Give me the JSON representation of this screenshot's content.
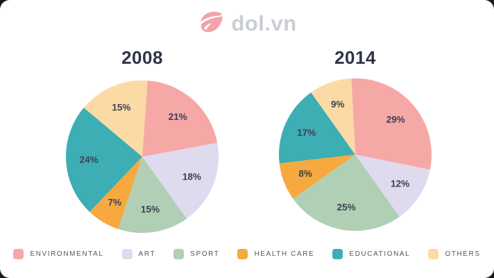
{
  "logo": {
    "text": "dol.vn"
  },
  "colors": {
    "environmental": "#F6A8A6",
    "art": "#DFDAEE",
    "sport": "#B0CFB4",
    "health_care": "#F6A93E",
    "educational": "#3CAEB4",
    "others": "#FBDAA5",
    "title_text": "#2D3448",
    "percent_label_text": "#3E4254",
    "legend_text": "#54565E",
    "logo_text": "#C9CDD6",
    "logo_icon": "#F2A4AA",
    "card_background": "#FFFFFF"
  },
  "legend": {
    "items": [
      {
        "label": "ENVIRONMENTAL",
        "color": "#F6A8A6"
      },
      {
        "label": "ART",
        "color": "#DFDAEE"
      },
      {
        "label": "SPORT",
        "color": "#B0CFB4"
      },
      {
        "label": "HEALTH CARE",
        "color": "#F6A93E"
      },
      {
        "label": "EDUCATIONAL",
        "color": "#3CAEB4"
      },
      {
        "label": "OTHERS",
        "color": "#FBDAA5"
      }
    ],
    "position": "bottom"
  },
  "chart_data": [
    {
      "type": "pie",
      "title": "2008",
      "unit": "%",
      "start_angle_deg": 4,
      "categories": [
        "Environmental",
        "Art",
        "Sport",
        "Health Care",
        "Educational",
        "Others"
      ],
      "values": [
        21,
        18,
        15,
        7,
        24,
        15
      ],
      "slice_colors": [
        "#F6A8A6",
        "#DFDAEE",
        "#B0CFB4",
        "#F6A93E",
        "#3CAEB4",
        "#FBDAA5"
      ],
      "data_labels": [
        "21%",
        "18%",
        "15%",
        "7%",
        "24%",
        "15%"
      ]
    },
    {
      "type": "pie",
      "title": "2014",
      "unit": "%",
      "start_angle_deg": -3,
      "categories": [
        "Environmental",
        "Art",
        "Sport",
        "Health Care",
        "Educational",
        "Others"
      ],
      "values": [
        29,
        12,
        25,
        8,
        17,
        9
      ],
      "slice_colors": [
        "#F6A8A6",
        "#DFDAEE",
        "#B0CFB4",
        "#F6A93E",
        "#3CAEB4",
        "#FBDAA5"
      ],
      "data_labels": [
        "29%",
        "12%",
        "25%",
        "8%",
        "17%",
        "9%"
      ]
    }
  ]
}
